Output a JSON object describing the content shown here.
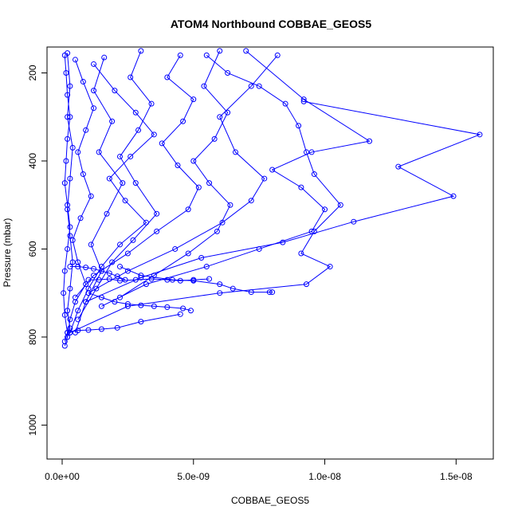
{
  "chart_data": {
    "type": "line",
    "title": "ATOM4 Northbound COBBAE_GEOS5",
    "xlabel": "COBBAE_GEOS5",
    "ylabel": "Pressure (mbar)",
    "xlim": [
      0,
      1.65e-08
    ],
    "ylim": [
      1040,
      150
    ],
    "y_reversed": true,
    "x_ticks": [
      0,
      5e-09,
      1e-08,
      1.5e-08
    ],
    "x_tick_labels": [
      "0.0e+00",
      "5.0e-09",
      "1.0e-08",
      "1.5e-08"
    ],
    "y_ticks": [
      200,
      400,
      600,
      800,
      1000
    ],
    "y_tick_labels": [
      "200",
      "400",
      "600",
      "800",
      "1000"
    ],
    "grid": false,
    "legend": "none",
    "color": "#0000ff",
    "marker": "open-circle",
    "series": [
      {
        "x": [
          1e-10,
          1.5e-10,
          2e-10,
          3e-10,
          2e-10,
          1.5e-10,
          1e-10,
          2e-10,
          3e-10,
          2e-10,
          1e-10,
          5e-11,
          1e-10,
          2e-10,
          1e-10
        ],
        "y": [
          160,
          200,
          250,
          300,
          350,
          400,
          450,
          500,
          550,
          600,
          650,
          700,
          750,
          790,
          810
        ]
      },
      {
        "x": [
          5e-10,
          8e-10,
          1.2e-09,
          9e-10,
          6e-10,
          8e-10,
          1.1e-09,
          7e-10,
          4e-10,
          6e-10,
          9e-10,
          5e-10,
          3e-10,
          2e-10
        ],
        "y": [
          170,
          220,
          280,
          330,
          380,
          430,
          480,
          530,
          580,
          630,
          680,
          720,
          760,
          800
        ]
      },
      {
        "x": [
          1.2e-09,
          2e-09,
          2.8e-09,
          3.5e-09,
          2.6e-09,
          1.8e-09,
          2.4e-09,
          3.2e-09,
          2.2e-09,
          1.5e-09,
          1e-09,
          6e-10,
          3e-10
        ],
        "y": [
          180,
          240,
          290,
          340,
          390,
          440,
          490,
          540,
          590,
          640,
          690,
          740,
          790
        ]
      },
      {
        "x": [
          4.5e-09,
          4e-09,
          5e-09,
          4.6e-09,
          3.8e-09,
          4.4e-09,
          5.2e-09,
          4.8e-09,
          3.6e-09,
          2.5e-09,
          1.2e-09,
          5e-10
        ],
        "y": [
          160,
          210,
          260,
          310,
          360,
          410,
          460,
          510,
          560,
          610,
          660,
          710
        ]
      },
      {
        "x": [
          5.5e-09,
          6.3e-09,
          7.5e-09,
          8.5e-09,
          9e-09,
          9.3e-09,
          9.6e-09,
          1.06e-08,
          9.6e-09,
          9.1e-09,
          1.02e-08,
          9.3e-09,
          6e-09,
          2.5e-09,
          3e-10
        ],
        "y": [
          160,
          200,
          230,
          270,
          320,
          380,
          430,
          500,
          560,
          610,
          640,
          680,
          700,
          730,
          790
        ]
      },
      {
        "x": [
          7e-09,
          9.2e-09,
          1.17e-08,
          9.5e-09,
          8e-09,
          9.1e-09,
          1e-08,
          9.5e-09,
          7.5e-09,
          5.5e-09,
          3.2e-09,
          1.5e-09
        ],
        "y": [
          150,
          260,
          355,
          380,
          420,
          460,
          510,
          560,
          600,
          640,
          680,
          730
        ]
      },
      {
        "x": [
          9.2e-09,
          1.59e-08,
          1.28e-08,
          1.49e-08,
          1.11e-08,
          8.4e-09,
          5.3e-09,
          3e-09,
          9e-10
        ],
        "y": [
          265,
          340,
          413,
          480,
          538,
          585,
          620,
          665,
          720
        ]
      },
      {
        "x": [
          2.2e-09,
          3e-09,
          4.2e-09,
          5e-09,
          6e-09,
          6.5e-09,
          7.2e-09,
          7.9e-09,
          8e-09
        ],
        "y": [
          640,
          660,
          670,
          672,
          680,
          690,
          698,
          698,
          698
        ]
      },
      {
        "x": [
          1e-09,
          1.5e-09,
          2e-09,
          2.5e-09,
          3e-09,
          3.5e-09,
          4e-09,
          4.6e-09,
          4.9e-09
        ],
        "y": [
          700,
          710,
          720,
          725,
          728,
          730,
          732,
          735,
          740
        ]
      },
      {
        "x": [
          2e-10,
          6e-10,
          1e-09,
          1.5e-09,
          2.1e-09,
          3e-09,
          4.5e-09
        ],
        "y": [
          790,
          785,
          784,
          782,
          779,
          765,
          748
        ]
      },
      {
        "x": [
          3e-10,
          6e-10,
          9e-10,
          1.2e-09,
          1.5e-09,
          1.8e-09,
          2.1e-09,
          2.4e-09
        ],
        "y": [
          640,
          640,
          642,
          645,
          650,
          655,
          662,
          670
        ]
      },
      {
        "x": [
          1e-09,
          1.4e-09,
          1.8e-09,
          2.2e-09,
          2.8e-09,
          3.4e-09,
          4e-09,
          4.5e-09,
          5e-09,
          5.6e-09
        ],
        "y": [
          670,
          670,
          668,
          672,
          670,
          668,
          670,
          672,
          670,
          668
        ]
      },
      {
        "x": [
          3e-09,
          2.6e-09,
          3.4e-09,
          2.9e-09,
          2.2e-09,
          2.8e-09,
          3.6e-09,
          2.7e-09,
          1.9e-09,
          1.3e-09,
          6e-10
        ],
        "y": [
          150,
          210,
          270,
          330,
          390,
          450,
          520,
          580,
          630,
          690,
          760
        ]
      },
      {
        "x": [
          6e-09,
          5.4e-09,
          6.3e-09,
          5.8e-09,
          5e-09,
          5.6e-09,
          6.4e-09,
          5.9e-09,
          4.8e-09,
          3.5e-09,
          2.2e-09
        ],
        "y": [
          150,
          230,
          290,
          350,
          400,
          450,
          500,
          560,
          610,
          660,
          710
        ]
      },
      {
        "x": [
          8.2e-09,
          7.2e-09,
          6e-09,
          6.6e-09,
          7.7e-09,
          7.2e-09,
          6.1e-09,
          4.3e-09,
          2.5e-09,
          1e-09
        ],
        "y": [
          160,
          230,
          300,
          380,
          440,
          490,
          540,
          600,
          650,
          700
        ]
      },
      {
        "x": [
          2e-10,
          3e-10,
          2e-10,
          4e-10,
          3e-10,
          2e-10,
          3e-10,
          4e-10,
          3e-10,
          2e-10,
          3e-10,
          2e-10,
          1e-10
        ],
        "y": [
          155,
          230,
          300,
          370,
          440,
          510,
          570,
          630,
          690,
          740,
          780,
          800,
          820
        ]
      },
      {
        "x": [
          1.6e-09,
          1.2e-09,
          1.9e-09,
          1.4e-09,
          2.3e-09,
          1.7e-09,
          1.1e-09,
          1.5e-09,
          9e-10,
          5e-10
        ],
        "y": [
          165,
          240,
          310,
          380,
          450,
          520,
          590,
          650,
          720,
          790
        ]
      }
    ]
  }
}
